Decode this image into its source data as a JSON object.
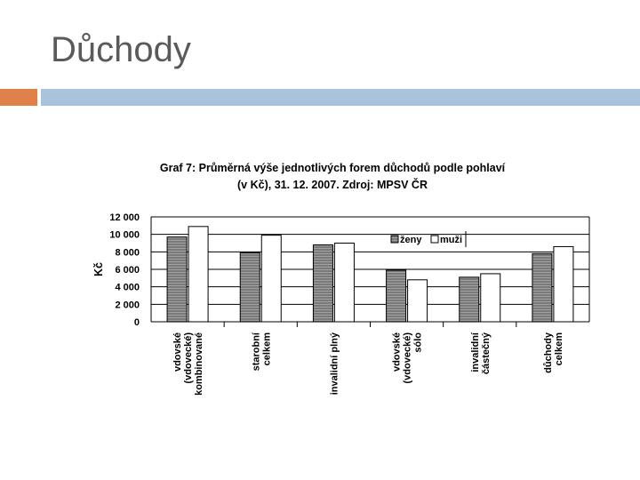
{
  "slide": {
    "title": "Důchody"
  },
  "chart_data": {
    "type": "bar",
    "title_line1": "Graf 7: Průměrná výše jednotlivých forem důchodů podle pohlaví",
    "title_line2": "(v Kč), 31. 12. 2007. Zdroj: MPSV ČR",
    "ylabel": "Kč",
    "ylim": [
      0,
      12000
    ],
    "yticks": [
      "0",
      "2 000",
      "4 000",
      "6 000",
      "8 000",
      "10 000",
      "12 000"
    ],
    "ytick_values": [
      0,
      2000,
      4000,
      6000,
      8000,
      10000,
      12000
    ],
    "grid": true,
    "legend_position": "top-right",
    "categories": [
      [
        "vdovské",
        "(vdovecké)",
        "kombinované"
      ],
      [
        "starobní",
        "celkem"
      ],
      [
        "invalidní plný"
      ],
      [
        "vdovské",
        "(vdovecké)",
        "sólo"
      ],
      [
        "invalidní",
        "částečný"
      ],
      [
        "důchody",
        "celkem"
      ]
    ],
    "series": [
      {
        "name": "ženy",
        "values": [
          9700,
          7900,
          8800,
          5900,
          5100,
          7800
        ],
        "color": "#808080"
      },
      {
        "name": "muži",
        "values": [
          10900,
          9900,
          9000,
          4800,
          5500,
          8600
        ],
        "color": "#ffffff"
      }
    ]
  }
}
